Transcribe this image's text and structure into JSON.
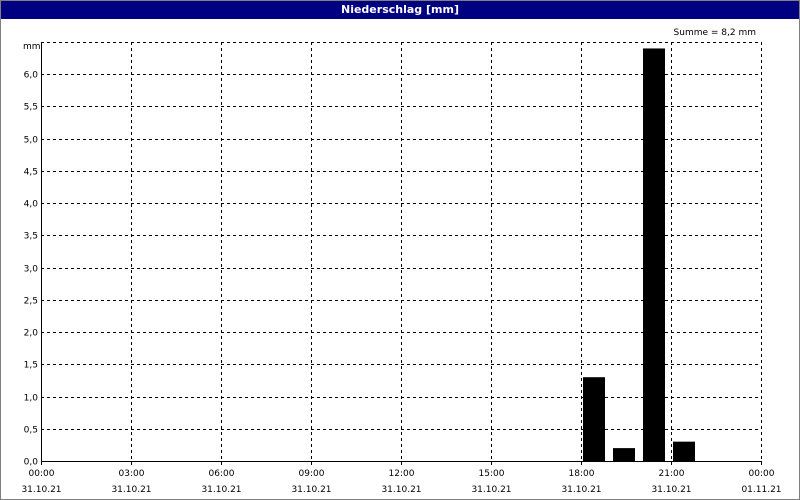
{
  "window": {
    "title": "Niederschlag [mm]"
  },
  "summary": "Summe = 8,2 mm",
  "colors": {
    "titlebar": "#000080",
    "bar": "#000000",
    "grid": "#000000",
    "background": "#ffffff"
  },
  "chart_data": {
    "type": "bar",
    "title": "Niederschlag [mm]",
    "ylabel": "mm",
    "xlabel": "",
    "ylim": [
      0,
      6.5
    ],
    "xlim_hours": [
      0,
      24
    ],
    "y_ticks": [
      "0,0",
      "0,5",
      "1,0",
      "1,5",
      "2,0",
      "2,5",
      "3,0",
      "3,5",
      "4,0",
      "4,5",
      "5,0",
      "5,5",
      "6,0"
    ],
    "y_tick_values": [
      0,
      0.5,
      1,
      1.5,
      2,
      2.5,
      3,
      3.5,
      4,
      4.5,
      5,
      5.5,
      6
    ],
    "x_ticks": [
      {
        "time": "00:00",
        "date": "31.10.21"
      },
      {
        "time": "03:00",
        "date": "31.10.21"
      },
      {
        "time": "06:00",
        "date": "31.10.21"
      },
      {
        "time": "09:00",
        "date": "31.10.21"
      },
      {
        "time": "12:00",
        "date": "31.10.21"
      },
      {
        "time": "15:00",
        "date": "31.10.21"
      },
      {
        "time": "18:00",
        "date": "31.10.21"
      },
      {
        "time": "21:00",
        "date": "31.10.21"
      },
      {
        "time": "00:00",
        "date": "01.11.21"
      }
    ],
    "bars": [
      {
        "start": "31.10.21 18:00",
        "end": "31.10.21 19:00",
        "value": 1.3
      },
      {
        "start": "31.10.21 19:00",
        "end": "31.10.21 20:00",
        "value": 0.2
      },
      {
        "start": "31.10.21 20:00",
        "end": "31.10.21 21:00",
        "value": 6.4
      },
      {
        "start": "31.10.21 21:00",
        "end": "31.10.21 22:00",
        "value": 0.3
      }
    ],
    "grid": true
  }
}
